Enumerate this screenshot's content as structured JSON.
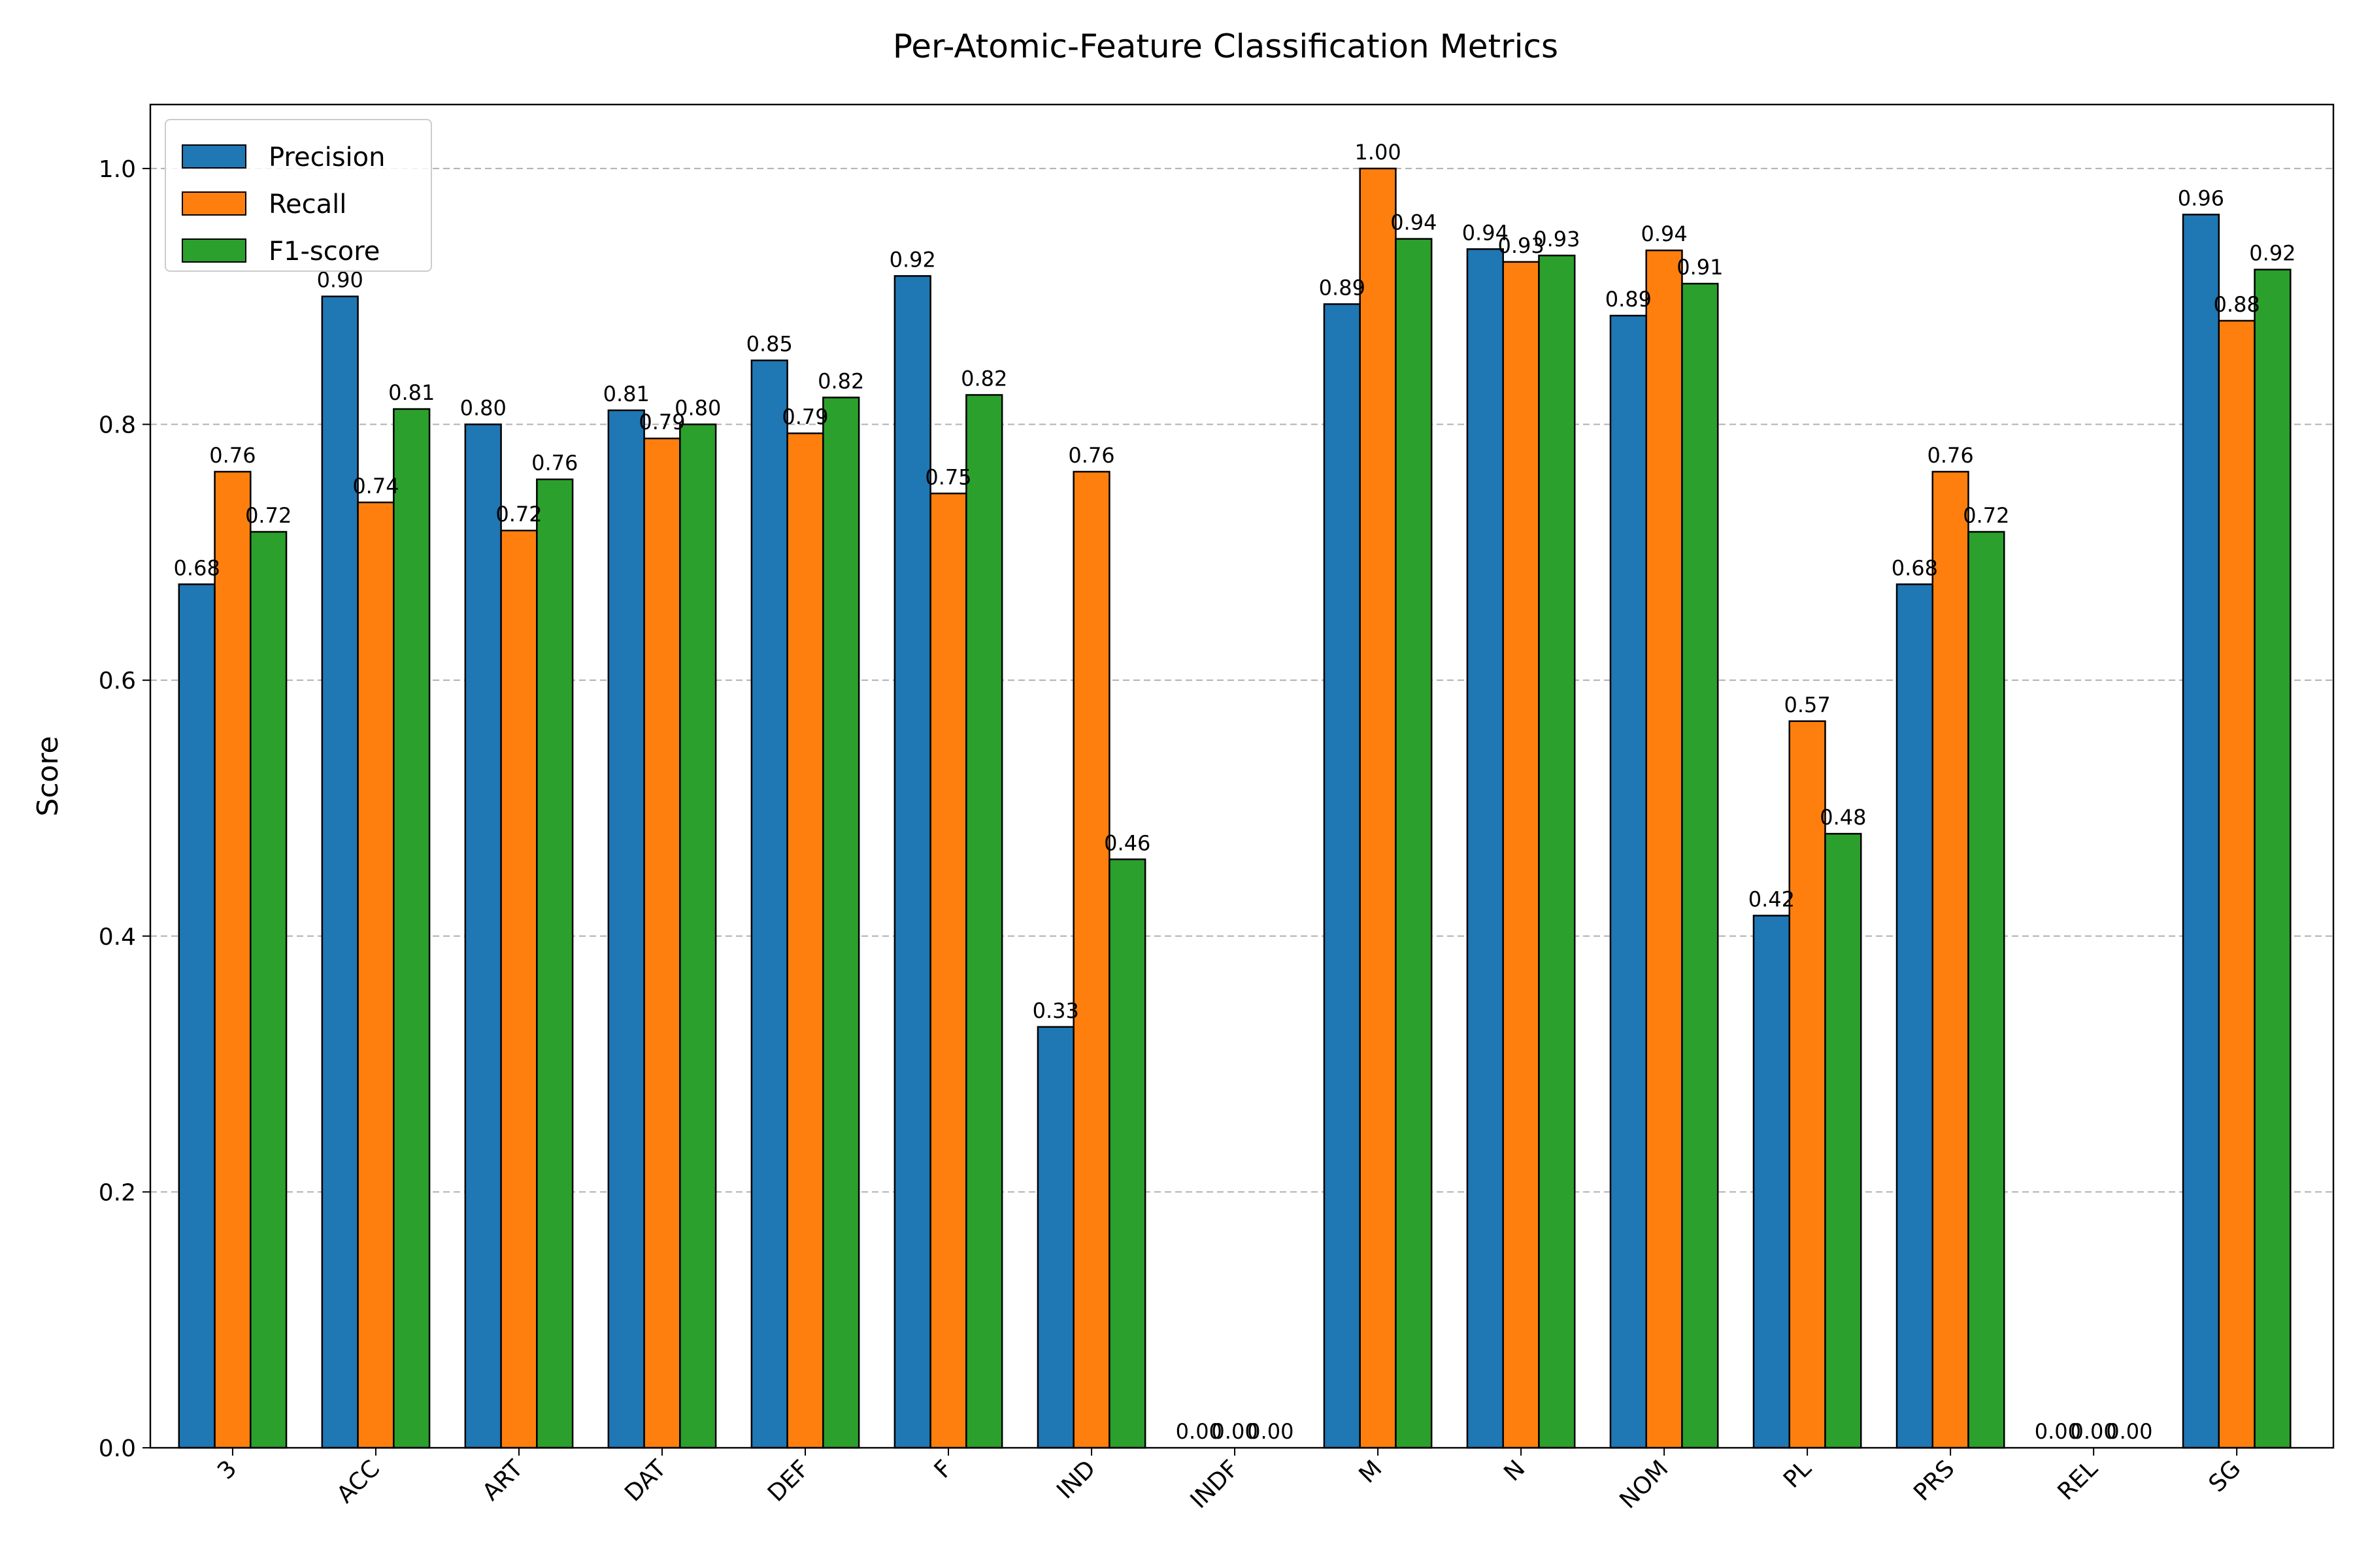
{
  "chart_data": {
    "type": "bar",
    "title": "Per-Atomic-Feature Classification Metrics",
    "xlabel": "",
    "ylabel": "Score",
    "ylim": [
      0,
      1.05
    ],
    "yticks": [
      0.0,
      0.2,
      0.4,
      0.6,
      0.8,
      1.0
    ],
    "ytick_labels": [
      "0.0",
      "0.2",
      "0.4",
      "0.6",
      "0.8",
      "1.0"
    ],
    "grid": "y-dashed",
    "legend_position": "top-left",
    "categories": [
      "3",
      "ACC",
      "ART",
      "DAT",
      "DEF",
      "F",
      "IND",
      "INDF",
      "M",
      "N",
      "NOM",
      "PL",
      "PRS",
      "REL",
      "SG"
    ],
    "series": [
      {
        "name": "Precision",
        "color": "#1f77b4",
        "values": [
          0.675,
          0.9,
          0.8,
          0.811,
          0.85,
          0.916,
          0.329,
          0.0,
          0.894,
          0.937,
          0.885,
          0.416,
          0.675,
          0.0,
          0.964
        ],
        "labels": [
          "0.68",
          "0.90",
          "0.80",
          "0.81",
          "0.85",
          "0.92",
          "0.33",
          "0.00",
          "0.89",
          "0.94",
          "0.89",
          "0.42",
          "0.68",
          "0.00",
          "0.96"
        ]
      },
      {
        "name": "Recall",
        "color": "#ff7f0e",
        "values": [
          0.763,
          0.739,
          0.717,
          0.789,
          0.793,
          0.746,
          0.763,
          0.0,
          1.0,
          0.927,
          0.936,
          0.568,
          0.763,
          0.0,
          0.881
        ],
        "labels": [
          "0.76",
          "0.74",
          "0.72",
          "0.79",
          "0.79",
          "0.75",
          "0.76",
          "0.00",
          "1.00",
          "0.93",
          "0.94",
          "0.57",
          "0.76",
          "0.00",
          "0.88"
        ]
      },
      {
        "name": "F1-score",
        "color": "#2ca02c",
        "values": [
          0.716,
          0.812,
          0.757,
          0.8,
          0.821,
          0.823,
          0.46,
          0.0,
          0.945,
          0.932,
          0.91,
          0.48,
          0.716,
          0.0,
          0.921
        ],
        "labels": [
          "0.72",
          "0.81",
          "0.76",
          "0.80",
          "0.82",
          "0.82",
          "0.46",
          "0.00",
          "0.94",
          "0.93",
          "0.91",
          "0.48",
          "0.72",
          "0.00",
          "0.92"
        ]
      }
    ]
  }
}
